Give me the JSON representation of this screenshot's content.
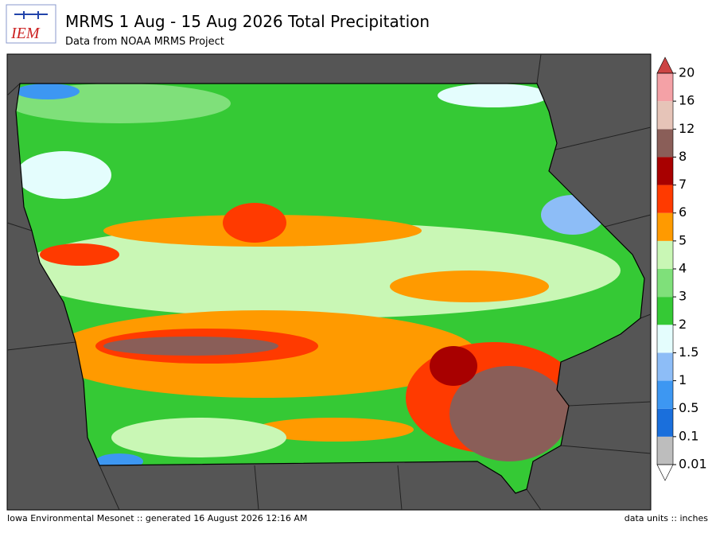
{
  "header": {
    "logo": "IEM",
    "title": "MRMS 1 Aug - 15 Aug 2026 Total Precipitation",
    "subtitle": "Data from NOAA MRMS Project"
  },
  "footer": {
    "left": "Iowa Environmental Mesonet :: generated 16 August 2026 12:16 AM",
    "right": "data units :: inches"
  },
  "legend": {
    "levels": [
      0.01,
      0.1,
      0.5,
      1,
      1.5,
      2,
      3,
      4,
      5,
      6,
      7,
      8,
      12,
      16,
      20
    ],
    "colors": [
      "#bdbdbd",
      "#1a6fdc",
      "#3d97f2",
      "#8dbdf7",
      "#e4fdfd",
      "#35c935",
      "#7fe07a",
      "#c9f7b5",
      "#ff9a00",
      "#ff3a00",
      "#a80000",
      "#8a5e58",
      "#e6c4b8",
      "#f4a1a6"
    ],
    "under_color": "#ffffff",
    "over_color": "#cc4444"
  }
}
